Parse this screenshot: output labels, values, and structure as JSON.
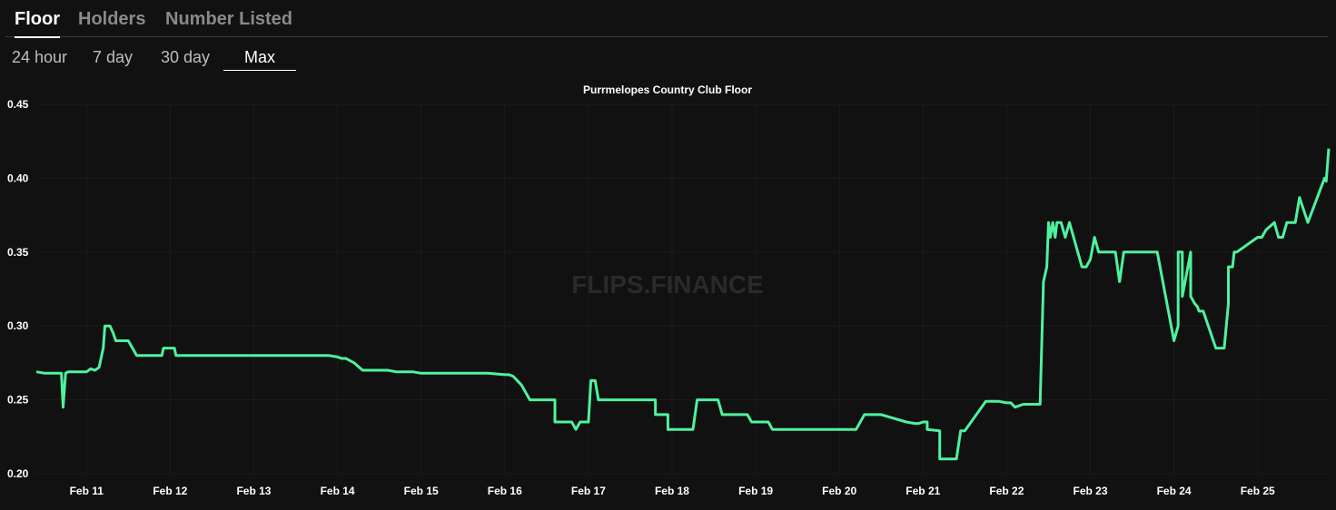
{
  "tabs": [
    {
      "label": "Floor",
      "active": true
    },
    {
      "label": "Holders",
      "active": false
    },
    {
      "label": "Number Listed",
      "active": false
    }
  ],
  "ranges": [
    {
      "label": "24 hour",
      "active": false
    },
    {
      "label": "7 day",
      "active": false
    },
    {
      "label": "30 day",
      "active": false
    },
    {
      "label": "Max",
      "active": true
    }
  ],
  "watermark": "FLIPS.FINANCE",
  "colors": {
    "background": "#111111",
    "line": "#4ef29e",
    "grid": "#1b1b1b"
  },
  "chart_data": {
    "type": "line",
    "title": "Purrmelopes Country Club Floor",
    "xlabel": "",
    "ylabel": "",
    "ylim": [
      0.2,
      0.45
    ],
    "yticks": [
      "0.20",
      "0.25",
      "0.30",
      "0.35",
      "0.40",
      "0.45"
    ],
    "xticks": [
      {
        "label": "Feb 11",
        "value": 11
      },
      {
        "label": "Feb 12",
        "value": 12
      },
      {
        "label": "Feb 13",
        "value": 13
      },
      {
        "label": "Feb 14",
        "value": 14
      },
      {
        "label": "Feb 15",
        "value": 15
      },
      {
        "label": "Feb 16",
        "value": 16
      },
      {
        "label": "Feb 17",
        "value": 17
      },
      {
        "label": "Feb 18",
        "value": 18
      },
      {
        "label": "Feb 19",
        "value": 19
      },
      {
        "label": "Feb 20",
        "value": 20
      },
      {
        "label": "Feb 21",
        "value": 21
      },
      {
        "label": "Feb 22",
        "value": 22
      },
      {
        "label": "Feb 23",
        "value": 23
      },
      {
        "label": "Feb 24",
        "value": 24
      },
      {
        "label": "Feb 25",
        "value": 25
      }
    ],
    "xlim": [
      10.4,
      25.85
    ],
    "grid": true,
    "series": [
      {
        "x": [
          10.4,
          10.5,
          10.6,
          10.7,
          10.72,
          10.75,
          10.78,
          10.8,
          11.0,
          11.05,
          11.1,
          11.15,
          11.2,
          11.22,
          11.28,
          11.32,
          11.35,
          11.5,
          11.6,
          11.9,
          11.92,
          12.05,
          12.07,
          12.5,
          13.0,
          13.5,
          13.9,
          14.0,
          14.05,
          14.1,
          14.2,
          14.3,
          14.5,
          14.6,
          14.7,
          14.9,
          15.0,
          15.3,
          15.5,
          15.8,
          16.0,
          16.05,
          16.1,
          16.2,
          16.3,
          16.6,
          16.6,
          16.8,
          16.85,
          16.9,
          17.0,
          17.03,
          17.08,
          17.12,
          17.5,
          17.8,
          17.8,
          17.95,
          17.95,
          18.25,
          18.3,
          18.55,
          18.6,
          18.9,
          18.95,
          19.15,
          19.2,
          19.5,
          19.8,
          20.0,
          20.2,
          20.3,
          20.5,
          20.8,
          20.9,
          20.95,
          21.0,
          21.05,
          21.05,
          21.2,
          21.2,
          21.4,
          21.45,
          21.5,
          21.75,
          21.9,
          22.0,
          22.05,
          22.1,
          22.1,
          22.2,
          22.25,
          22.4,
          22.42,
          22.44,
          22.48,
          22.5,
          22.52,
          22.55,
          22.58,
          22.6,
          22.65,
          22.7,
          22.75,
          22.8,
          22.85,
          22.9,
          22.95,
          23.0,
          23.05,
          23.1,
          23.15,
          23.2,
          23.3,
          23.35,
          23.4,
          23.43,
          23.45,
          23.5,
          23.6,
          23.8,
          24.0,
          24.05,
          24.05,
          24.1,
          24.1,
          24.2,
          24.2,
          24.25,
          24.28,
          24.3,
          24.35,
          24.5,
          24.6,
          24.65,
          24.65,
          24.7,
          24.72,
          24.75,
          25.0,
          25.05,
          25.1,
          25.1,
          25.2,
          25.25,
          25.3,
          25.35,
          25.45,
          25.5,
          25.6,
          25.8,
          25.82,
          25.85
        ],
        "y": [
          0.269,
          0.268,
          0.268,
          0.268,
          0.245,
          0.268,
          0.269,
          0.269,
          0.269,
          0.271,
          0.27,
          0.272,
          0.285,
          0.3,
          0.3,
          0.295,
          0.29,
          0.29,
          0.28,
          0.28,
          0.285,
          0.285,
          0.28,
          0.28,
          0.28,
          0.28,
          0.28,
          0.279,
          0.278,
          0.278,
          0.275,
          0.27,
          0.27,
          0.27,
          0.269,
          0.269,
          0.268,
          0.268,
          0.268,
          0.268,
          0.267,
          0.267,
          0.266,
          0.26,
          0.25,
          0.25,
          0.235,
          0.235,
          0.23,
          0.235,
          0.235,
          0.263,
          0.263,
          0.25,
          0.25,
          0.25,
          0.24,
          0.24,
          0.23,
          0.23,
          0.25,
          0.25,
          0.24,
          0.24,
          0.235,
          0.235,
          0.23,
          0.23,
          0.23,
          0.23,
          0.23,
          0.24,
          0.24,
          0.235,
          0.234,
          0.234,
          0.235,
          0.235,
          0.23,
          0.229,
          0.21,
          0.21,
          0.229,
          0.229,
          0.249,
          0.249,
          0.248,
          0.248,
          0.245,
          0.245,
          0.247,
          0.247,
          0.247,
          0.29,
          0.33,
          0.34,
          0.37,
          0.36,
          0.37,
          0.36,
          0.37,
          0.37,
          0.36,
          0.37,
          0.36,
          0.35,
          0.34,
          0.34,
          0.345,
          0.36,
          0.35,
          0.35,
          0.35,
          0.35,
          0.33,
          0.35,
          0.35,
          0.35,
          0.35,
          0.35,
          0.35,
          0.29,
          0.3,
          0.35,
          0.35,
          0.32,
          0.35,
          0.32,
          0.315,
          0.313,
          0.31,
          0.31,
          0.285,
          0.285,
          0.315,
          0.34,
          0.34,
          0.35,
          0.35,
          0.36,
          0.36,
          0.365,
          0.365,
          0.37,
          0.36,
          0.36,
          0.37,
          0.37,
          0.387,
          0.37,
          0.4,
          0.398,
          0.42
        ]
      }
    ]
  }
}
